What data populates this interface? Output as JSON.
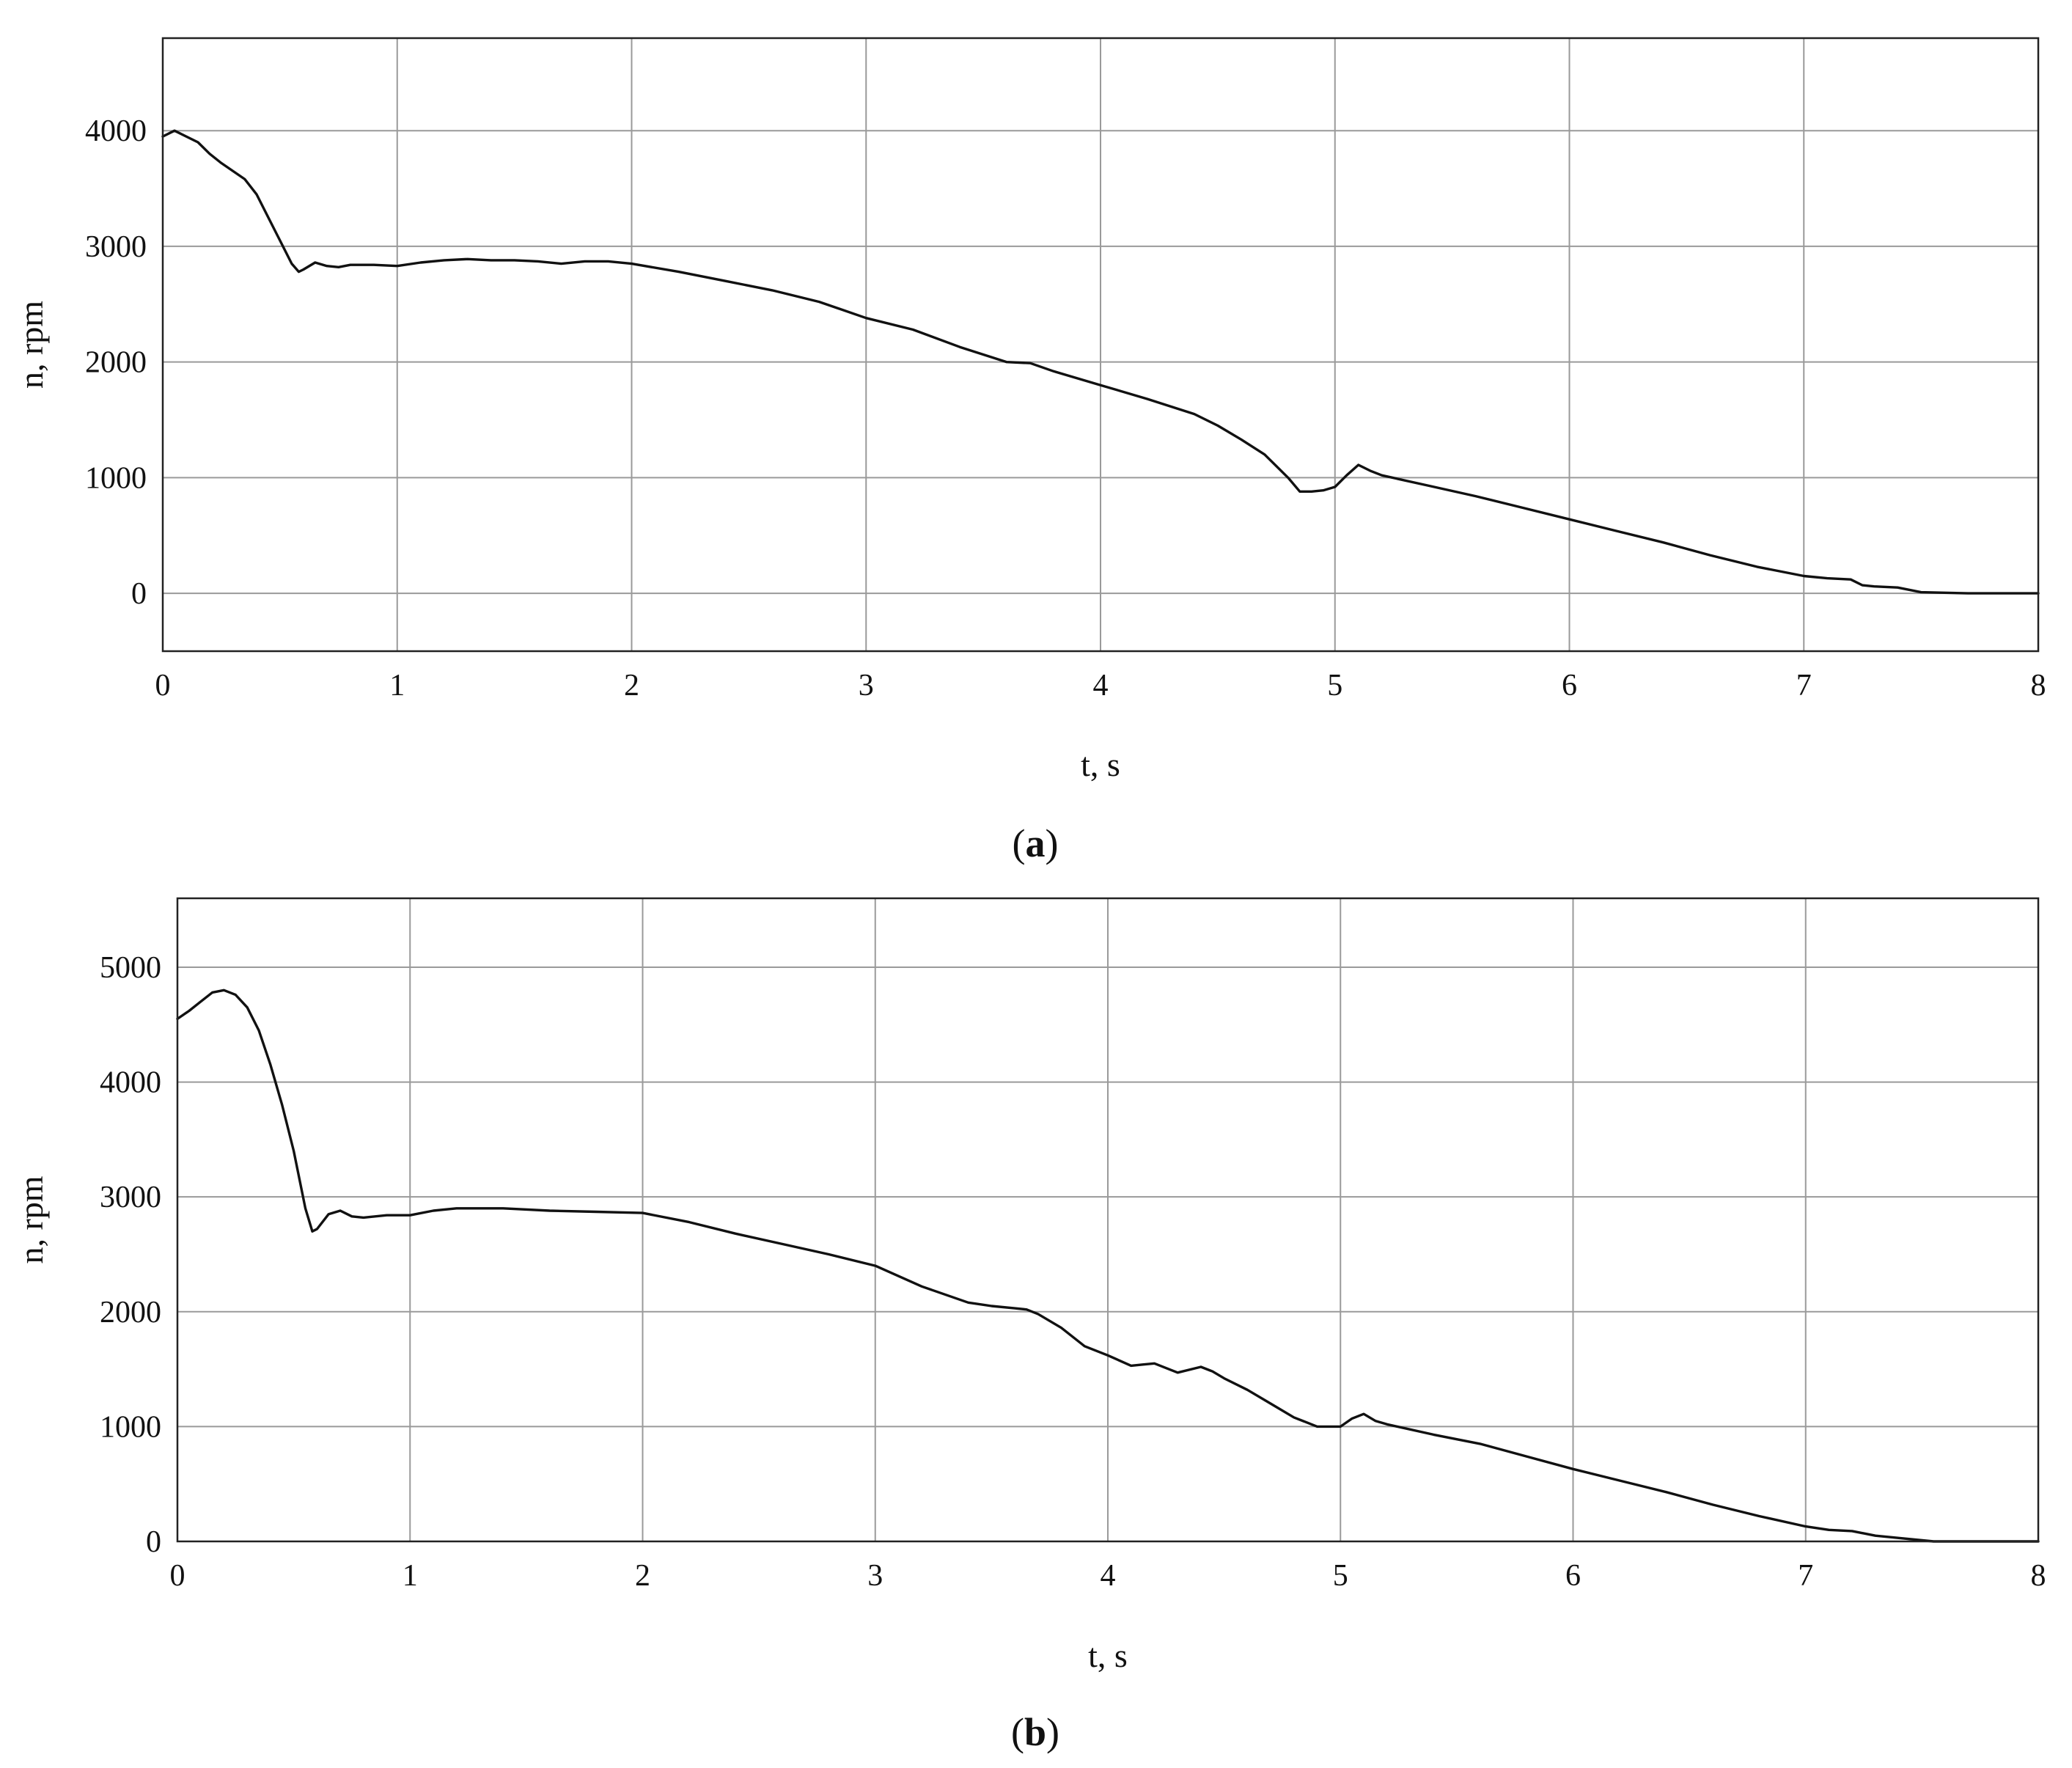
{
  "chart_data": [
    {
      "panel": "a",
      "type": "line",
      "caption": "a",
      "xlabel": "t, s",
      "ylabel": "n, rpm",
      "xlim": [
        0,
        8
      ],
      "ylim": [
        -500,
        4800
      ],
      "xticks": [
        0,
        1,
        2,
        3,
        4,
        5,
        6,
        7,
        8
      ],
      "yticks": [
        0,
        1000,
        2000,
        3000,
        4000
      ],
      "grid": true,
      "series": [
        {
          "x": [
            0,
            0.05,
            0.1,
            0.15,
            0.2,
            0.25,
            0.3,
            0.35,
            0.4,
            0.45,
            0.5,
            0.55,
            0.58,
            0.6,
            0.65,
            0.7,
            0.75,
            0.8,
            0.9,
            1.0,
            1.1,
            1.2,
            1.3,
            1.4,
            1.5,
            1.6,
            1.7,
            1.8,
            1.9,
            2.0,
            2.2,
            2.4,
            2.6,
            2.8,
            3.0,
            3.2,
            3.4,
            3.6,
            3.7,
            3.8,
            4.0,
            4.2,
            4.4,
            4.5,
            4.6,
            4.7,
            4.8,
            4.85,
            4.9,
            4.95,
            5.0,
            5.05,
            5.1,
            5.15,
            5.2,
            5.4,
            5.6,
            5.8,
            6.0,
            6.2,
            6.4,
            6.6,
            6.8,
            7.0,
            7.1,
            7.2,
            7.25,
            7.3,
            7.4,
            7.5,
            7.7,
            8.0
          ],
          "y": [
            3950,
            4000,
            3950,
            3900,
            3800,
            3720,
            3650,
            3580,
            3450,
            3250,
            3050,
            2850,
            2780,
            2800,
            2860,
            2830,
            2820,
            2840,
            2840,
            2830,
            2860,
            2880,
            2890,
            2880,
            2880,
            2870,
            2850,
            2870,
            2870,
            2850,
            2780,
            2700,
            2620,
            2520,
            2380,
            2280,
            2130,
            2000,
            1990,
            1920,
            1800,
            1680,
            1550,
            1450,
            1330,
            1200,
            1000,
            880,
            880,
            890,
            920,
            1020,
            1110,
            1060,
            1020,
            930,
            840,
            740,
            640,
            540,
            440,
            330,
            230,
            150,
            130,
            120,
            70,
            60,
            50,
            10,
            0,
            0
          ]
        }
      ]
    },
    {
      "panel": "b",
      "type": "line",
      "caption": "b",
      "xlabel": "t, s",
      "ylabel": "n, rpm",
      "xlim": [
        0,
        8
      ],
      "ylim": [
        0,
        5600
      ],
      "xticks": [
        0,
        1,
        2,
        3,
        4,
        5,
        6,
        7,
        8
      ],
      "yticks": [
        0,
        1000,
        2000,
        3000,
        4000,
        5000
      ],
      "grid": true,
      "series": [
        {
          "x": [
            0,
            0.05,
            0.1,
            0.15,
            0.2,
            0.25,
            0.3,
            0.35,
            0.4,
            0.45,
            0.5,
            0.55,
            0.58,
            0.6,
            0.65,
            0.7,
            0.75,
            0.8,
            0.9,
            1.0,
            1.1,
            1.2,
            1.4,
            1.6,
            1.8,
            2.0,
            2.2,
            2.4,
            2.6,
            2.8,
            3.0,
            3.2,
            3.4,
            3.5,
            3.6,
            3.65,
            3.7,
            3.8,
            3.9,
            4.0,
            4.1,
            4.15,
            4.2,
            4.3,
            4.4,
            4.45,
            4.5,
            4.6,
            4.7,
            4.8,
            4.9,
            5.0,
            5.05,
            5.1,
            5.15,
            5.2,
            5.4,
            5.6,
            5.8,
            6.0,
            6.2,
            6.4,
            6.6,
            6.8,
            7.0,
            7.1,
            7.2,
            7.3,
            7.4,
            7.55,
            7.8,
            8.0
          ],
          "y": [
            4550,
            4620,
            4700,
            4780,
            4800,
            4760,
            4650,
            4450,
            4150,
            3800,
            3400,
            2900,
            2700,
            2720,
            2850,
            2880,
            2830,
            2820,
            2840,
            2840,
            2880,
            2900,
            2900,
            2880,
            2870,
            2860,
            2780,
            2680,
            2590,
            2500,
            2400,
            2220,
            2080,
            2050,
            2030,
            2020,
            1980,
            1860,
            1700,
            1620,
            1530,
            1540,
            1550,
            1470,
            1520,
            1480,
            1420,
            1320,
            1200,
            1080,
            1000,
            1000,
            1070,
            1110,
            1050,
            1020,
            930,
            850,
            740,
            630,
            530,
            430,
            320,
            220,
            130,
            100,
            90,
            50,
            30,
            0,
            0,
            0
          ]
        }
      ]
    }
  ]
}
